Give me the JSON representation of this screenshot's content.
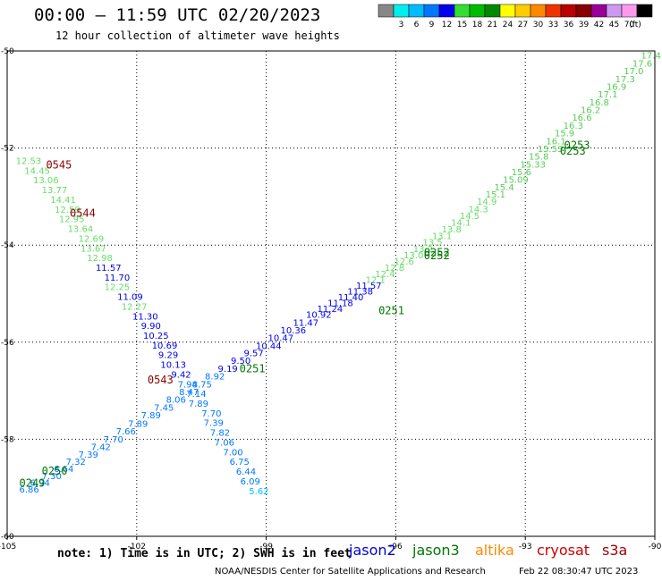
{
  "title": "00:00 – 11:59 UTC 02/20/2023",
  "subtitle": "12 hour collection of altimeter wave heights",
  "note": "note: 1) Time is in UTC; 2) SWH is in feet",
  "credit": "NOAA/NESDIS Center for Satellite Applications and Research",
  "generated": "Feb 22 08:30:47 UTC 2023",
  "satellites": [
    {
      "name": "jason2",
      "color": "#0000dd"
    },
    {
      "name": "jason3",
      "color": "#007700"
    },
    {
      "name": "altika",
      "color": "#ff8800"
    },
    {
      "name": "cryosat",
      "color": "#cc0000"
    },
    {
      "name": "s3a",
      "color": "#990000"
    }
  ],
  "colorbar": {
    "unit": "(ft)",
    "bins": [
      {
        "label": "",
        "color": "#888888"
      },
      {
        "label": "3",
        "color": "#00eeee"
      },
      {
        "label": "6",
        "color": "#00bbff"
      },
      {
        "label": "9",
        "color": "#0077ff"
      },
      {
        "label": "12",
        "color": "#0000ee"
      },
      {
        "label": "15",
        "color": "#33dd33"
      },
      {
        "label": "18",
        "color": "#00bb00"
      },
      {
        "label": "21",
        "color": "#008800"
      },
      {
        "label": "24",
        "color": "#ffff00"
      },
      {
        "label": "27",
        "color": "#ffcc00"
      },
      {
        "label": "30",
        "color": "#ff8800"
      },
      {
        "label": "33",
        "color": "#ee3300"
      },
      {
        "label": "36",
        "color": "#bb0000"
      },
      {
        "label": "39",
        "color": "#880000"
      },
      {
        "label": "42",
        "color": "#990099"
      },
      {
        "label": "45",
        "color": "#cc99ee"
      },
      {
        "label": "70",
        "color": "#ff99ee"
      },
      {
        "label": "",
        "color": "#000000"
      }
    ]
  },
  "chart_data": {
    "type": "scatter",
    "xlim": [
      -105,
      -90
    ],
    "ylim": [
      -60,
      -50
    ],
    "xticks": [
      -105,
      -102,
      -99,
      -96,
      -93,
      -90
    ],
    "yticks": [
      -50,
      -52,
      -54,
      -56,
      -58,
      -60
    ],
    "xtick_labels": [
      "-105",
      "-102",
      "-99",
      "-96",
      "-93",
      "-90"
    ],
    "ytick_labels": [
      "-50",
      "-52",
      "-54",
      "-56",
      "-58",
      "-60"
    ],
    "grid": true,
    "track_a": {
      "color": "#33dd33",
      "points": [
        {
          "x": -104.72,
          "y": -59.1,
          "v": "6.86"
        },
        {
          "x": -104.47,
          "y": -58.96,
          "v": "6.94"
        },
        {
          "x": -104.2,
          "y": -58.82,
          "v": "7.30"
        },
        {
          "x": -103.92,
          "y": -58.67,
          "v": "6.64"
        },
        {
          "x": -103.64,
          "y": -58.53,
          "v": "7.32"
        },
        {
          "x": -103.35,
          "y": -58.38,
          "v": "7.39"
        },
        {
          "x": -103.06,
          "y": -58.22,
          "v": "7.42"
        },
        {
          "x": -102.77,
          "y": -58.07,
          "v": "7.70"
        },
        {
          "x": -102.48,
          "y": -57.9,
          "v": "7.66"
        },
        {
          "x": -102.2,
          "y": -57.74,
          "v": "7.89"
        },
        {
          "x": -101.9,
          "y": -57.57,
          "v": "7.89"
        },
        {
          "x": -101.6,
          "y": -57.41,
          "v": "7.45"
        },
        {
          "x": -101.32,
          "y": -57.25,
          "v": "8.06"
        },
        {
          "x": -101.02,
          "y": -57.09,
          "v": "8.47"
        },
        {
          "x": -100.72,
          "y": -56.93,
          "v": "8.75"
        },
        {
          "x": -100.42,
          "y": -56.77,
          "v": "8.92"
        },
        {
          "x": -100.12,
          "y": -56.61,
          "v": "9.19"
        },
        {
          "x": -99.82,
          "y": -56.45,
          "v": "9.50"
        },
        {
          "x": -99.52,
          "y": -56.29,
          "v": "9.57"
        },
        {
          "x": -99.24,
          "y": -56.14,
          "v": "10.44"
        },
        {
          "x": -98.96,
          "y": -55.98,
          "v": "10.47"
        },
        {
          "x": -98.67,
          "y": -55.82,
          "v": "10.36"
        },
        {
          "x": -98.38,
          "y": -55.66,
          "v": "11.47"
        },
        {
          "x": -98.08,
          "y": -55.5,
          "v": "10.92"
        },
        {
          "x": -97.82,
          "y": -55.38,
          "v": "11.24"
        },
        {
          "x": -97.58,
          "y": -55.26,
          "v": "11.18"
        },
        {
          "x": -97.34,
          "y": -55.14,
          "v": "11.40"
        },
        {
          "x": -97.12,
          "y": -55.02,
          "v": "11.38"
        },
        {
          "x": -96.92,
          "y": -54.9,
          "v": "11.57"
        },
        {
          "x": -96.7,
          "y": -54.78,
          "v": "12.1"
        },
        {
          "x": -96.48,
          "y": -54.66,
          "v": "12.4"
        },
        {
          "x": -96.26,
          "y": -54.53,
          "v": "12.8"
        },
        {
          "x": -96.04,
          "y": -54.4,
          "v": "12.6"
        },
        {
          "x": -95.82,
          "y": -54.27,
          "v": "13.0"
        },
        {
          "x": -95.6,
          "y": -54.14,
          "v": "13.2"
        },
        {
          "x": -95.38,
          "y": -54.01,
          "v": "13.5"
        },
        {
          "x": -95.16,
          "y": -53.88,
          "v": "13.1"
        },
        {
          "x": -94.94,
          "y": -53.74,
          "v": "13.8"
        },
        {
          "x": -94.72,
          "y": -53.6,
          "v": "14.1"
        },
        {
          "x": -94.52,
          "y": -53.46,
          "v": "14.5"
        },
        {
          "x": -94.32,
          "y": -53.32,
          "v": "14.3"
        },
        {
          "x": -94.12,
          "y": -53.17,
          "v": "14.9"
        },
        {
          "x": -93.92,
          "y": -53.02,
          "v": "15.1"
        },
        {
          "x": -93.72,
          "y": -52.87,
          "v": "15.4"
        },
        {
          "x": -93.52,
          "y": -52.72,
          "v": "15.09"
        },
        {
          "x": -93.32,
          "y": -52.56,
          "v": "15.6"
        },
        {
          "x": -93.12,
          "y": -52.4,
          "v": "15.33"
        },
        {
          "x": -92.92,
          "y": -52.24,
          "v": "15.8"
        },
        {
          "x": -92.72,
          "y": -52.08,
          "v": "15.53"
        },
        {
          "x": -92.52,
          "y": -51.92,
          "v": "16.1"
        },
        {
          "x": -92.32,
          "y": -51.76,
          "v": "15.9"
        },
        {
          "x": -92.12,
          "y": -51.6,
          "v": "16.3"
        },
        {
          "x": -91.92,
          "y": -51.44,
          "v": "16.6"
        },
        {
          "x": -91.72,
          "y": -51.28,
          "v": "16.2"
        },
        {
          "x": -91.52,
          "y": -51.12,
          "v": "16.8"
        },
        {
          "x": -91.32,
          "y": -50.96,
          "v": "17.1"
        },
        {
          "x": -91.12,
          "y": -50.8,
          "v": "16.9"
        },
        {
          "x": -90.92,
          "y": -50.64,
          "v": "17.3"
        },
        {
          "x": -90.72,
          "y": -50.48,
          "v": "17.0"
        },
        {
          "x": -90.52,
          "y": -50.32,
          "v": "17.6"
        },
        {
          "x": -90.32,
          "y": -50.16,
          "v": "17.4"
        }
      ],
      "times": [
        {
          "x": -104.72,
          "y": -58.98,
          "t": "0249",
          "color": "#007700"
        },
        {
          "x": -104.2,
          "y": -58.73,
          "t": "0250",
          "color": "#007700"
        },
        {
          "x": -99.62,
          "y": -56.62,
          "t": "0251",
          "color": "#007700"
        },
        {
          "x": -96.4,
          "y": -55.42,
          "t": "0251",
          "color": "#007700"
        },
        {
          "x": -95.35,
          "y": -54.23,
          "t": "0252",
          "color": "#007700"
        },
        {
          "x": -95.35,
          "y": -54.29,
          "t": "0252",
          "color": "#007700"
        },
        {
          "x": -92.1,
          "y": -52.02,
          "t": "0253",
          "color": "#007700"
        },
        {
          "x": -92.2,
          "y": -52.14,
          "t": "0253",
          "color": "#007700"
        }
      ]
    },
    "track_b": {
      "color": "#00bbff",
      "points": [
        {
          "x": -104.8,
          "y": -52.33,
          "v": "12.53"
        },
        {
          "x": -104.6,
          "y": -52.53,
          "v": "14.45"
        },
        {
          "x": -104.4,
          "y": -52.73,
          "v": "13.06"
        },
        {
          "x": -104.2,
          "y": -52.93,
          "v": "13.77"
        },
        {
          "x": -104.0,
          "y": -53.13,
          "v": "14.41"
        },
        {
          "x": -103.9,
          "y": -53.33,
          "v": "12.59"
        },
        {
          "x": -103.8,
          "y": -53.53,
          "v": "12.95"
        },
        {
          "x": -103.6,
          "y": -53.73,
          "v": "13.64"
        },
        {
          "x": -103.35,
          "y": -53.93,
          "v": "12.69"
        },
        {
          "x": -103.3,
          "y": -54.13,
          "v": "13.67"
        },
        {
          "x": -103.15,
          "y": -54.33,
          "v": "12.98"
        },
        {
          "x": -102.95,
          "y": -54.53,
          "v": "11.57"
        },
        {
          "x": -102.75,
          "y": -54.73,
          "v": "11.70"
        },
        {
          "x": -102.75,
          "y": -54.93,
          "v": "12.25"
        },
        {
          "x": -102.45,
          "y": -55.13,
          "v": "11.09"
        },
        {
          "x": -102.35,
          "y": -55.33,
          "v": "12.27"
        },
        {
          "x": -102.1,
          "y": -55.53,
          "v": "11.30"
        },
        {
          "x": -101.9,
          "y": -55.73,
          "v": "9.90"
        },
        {
          "x": -101.85,
          "y": -55.93,
          "v": "10.25"
        },
        {
          "x": -101.65,
          "y": -56.13,
          "v": "10.69"
        },
        {
          "x": -101.5,
          "y": -56.33,
          "v": "9.29"
        },
        {
          "x": -101.45,
          "y": -56.53,
          "v": "10.13"
        },
        {
          "x": -101.2,
          "y": -56.73,
          "v": "9.42"
        },
        {
          "x": -101.05,
          "y": -56.93,
          "v": "7.94"
        },
        {
          "x": -100.85,
          "y": -57.13,
          "v": "7.14"
        },
        {
          "x": -100.8,
          "y": -57.33,
          "v": "7.89"
        },
        {
          "x": -100.5,
          "y": -57.53,
          "v": "7.70"
        },
        {
          "x": -100.45,
          "y": -57.73,
          "v": "7.39"
        },
        {
          "x": -100.3,
          "y": -57.93,
          "v": "7.82"
        },
        {
          "x": -100.2,
          "y": -58.13,
          "v": "7.06"
        },
        {
          "x": -100.0,
          "y": -58.33,
          "v": "7.00"
        },
        {
          "x": -99.85,
          "y": -58.53,
          "v": "6.75"
        },
        {
          "x": -99.7,
          "y": -58.73,
          "v": "6.44"
        },
        {
          "x": -99.6,
          "y": -58.93,
          "v": "6.09"
        },
        {
          "x": -99.4,
          "y": -59.13,
          "v": "5.62"
        }
      ],
      "times": [
        {
          "x": -104.1,
          "y": -52.42,
          "t": "0545",
          "color": "#880000"
        },
        {
          "x": -103.55,
          "y": -53.42,
          "t": "0544",
          "color": "#880000"
        },
        {
          "x": -101.75,
          "y": -56.85,
          "t": "0543",
          "color": "#880000"
        }
      ]
    }
  }
}
